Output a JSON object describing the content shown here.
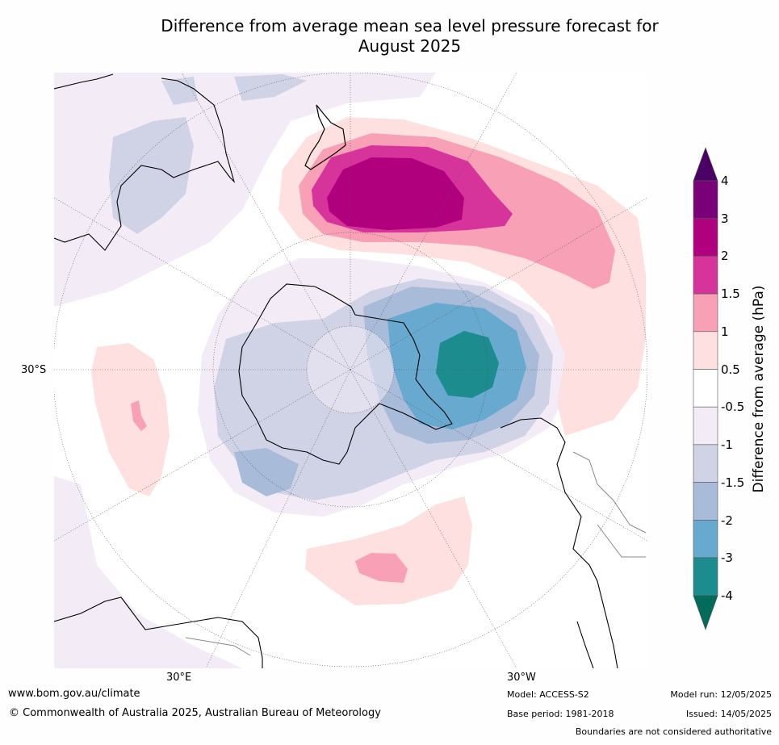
{
  "title_line1": "Difference from average mean sea level pressure forecast for",
  "title_line2": "August 2025",
  "map_labels": {
    "lat_30s": "30°S",
    "lon_30e": "30°E",
    "lon_30w": "30°W"
  },
  "colorbar": {
    "title": "Difference from average (hPa)",
    "labels": [
      "4",
      "3",
      "2",
      "1.5",
      "1",
      "0.5",
      "-0.5",
      "-1",
      "-1.5",
      "-2",
      "-3",
      "-4"
    ],
    "colors": {
      "above_4": "#4b0066",
      "3_to_4": "#7a007a",
      "2_to_3": "#b0007d",
      "1.5_to_2": "#d7349b",
      "1_to_1.5": "#f7a0b6",
      "0.5_to_1": "#fde0df",
      "neutral": "#ffffff",
      "-1_to_-0.5": "#f3ecf6",
      "-1.5_to_-1": "#d0d2e6",
      "-2_to_-1.5": "#a8bcd9",
      "-3_to_-2": "#67a9cf",
      "-4_to_-3": "#1c8c8f",
      "below_-4": "#016c59"
    }
  },
  "footer": {
    "url": "www.bom.gov.au/climate",
    "copyright": "© Commonwealth of Australia 2025, Australian Bureau of Meteorology",
    "model": "Model: ACCESS-S2",
    "base_period": "Base period: 1981-2018",
    "model_run": "Model run: 12/05/2025",
    "issued": "Issued: 14/05/2025",
    "disclaimer": "Boundaries are not considered authoritative"
  }
}
